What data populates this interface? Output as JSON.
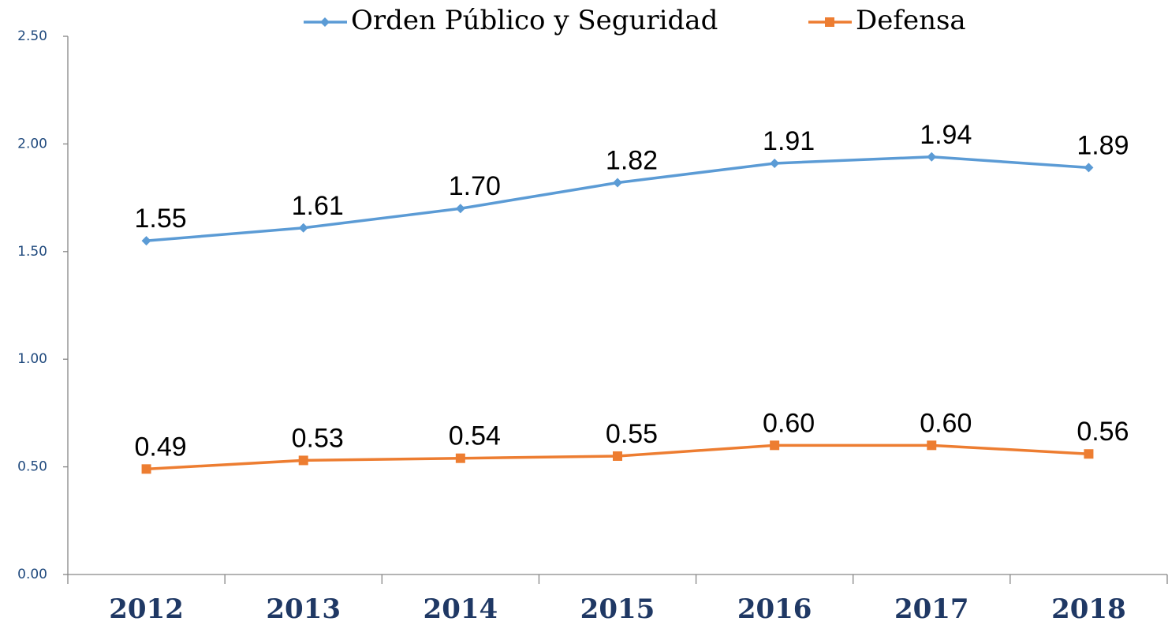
{
  "chart_data": {
    "type": "line",
    "categories": [
      "2012",
      "2013",
      "2014",
      "2015",
      "2016",
      "2017",
      "2018"
    ],
    "series": [
      {
        "name": "Orden Público y Seguridad",
        "color": "#5b9bd5",
        "marker": "diamond",
        "values": [
          1.55,
          1.61,
          1.7,
          1.82,
          1.91,
          1.94,
          1.89
        ],
        "value_labels": [
          "1.55",
          "1.61",
          "1.70",
          "1.82",
          "1.91",
          "1.94",
          "1.89"
        ]
      },
      {
        "name": "Defensa",
        "color": "#ed7d31",
        "marker": "square",
        "values": [
          0.49,
          0.53,
          0.54,
          0.55,
          0.6,
          0.6,
          0.56
        ],
        "value_labels": [
          "0.49",
          "0.53",
          "0.54",
          "0.55",
          "0.60",
          "0.60",
          "0.56"
        ]
      }
    ],
    "ylim": [
      0,
      2.5
    ],
    "yticks": [
      {
        "value": 0,
        "label": "0.00"
      },
      {
        "value": 0.5,
        "label": "0.50"
      },
      {
        "value": 1,
        "label": "1.00"
      },
      {
        "value": 1.5,
        "label": "1.50"
      },
      {
        "value": 2,
        "label": "2.00"
      },
      {
        "value": 2.5,
        "label": "2.50"
      }
    ],
    "grid": false,
    "legend": "top"
  }
}
